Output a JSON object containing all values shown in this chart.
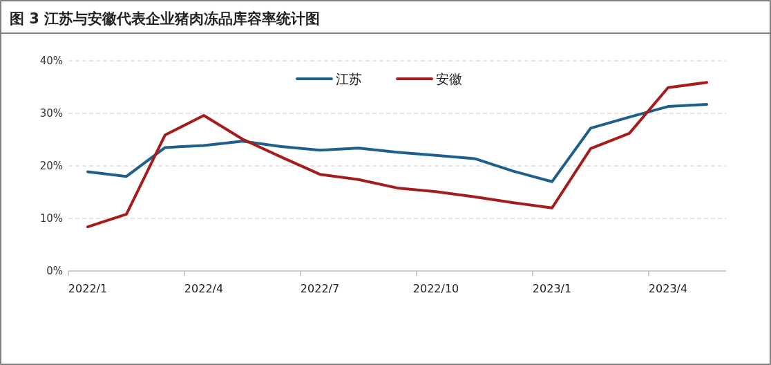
{
  "chart_data": {
    "type": "line",
    "title": "图 3 江苏与安徽代表企业猪肉冻品库容率统计图",
    "categories": [
      "2022/1",
      null,
      null,
      "2022/4",
      null,
      null,
      "2022/7",
      null,
      null,
      "2022/10",
      null,
      null,
      "2023/1",
      null,
      null,
      "2023/4",
      null
    ],
    "series": [
      {
        "name": "江苏",
        "color": "#1f5f8b",
        "values": [
          18.9,
          18.0,
          23.5,
          23.9,
          24.7,
          23.7,
          23.0,
          23.4,
          22.6,
          22.0,
          21.4,
          19.0,
          17.0,
          27.2,
          29.3,
          31.3,
          31.7
        ]
      },
      {
        "name": "安徽",
        "color": "#a51c1c",
        "values": [
          8.4,
          10.8,
          25.9,
          29.6,
          25.1,
          21.7,
          18.4,
          17.4,
          15.8,
          15.1,
          14.1,
          13.0,
          12.0,
          23.3,
          26.2,
          34.9,
          35.9
        ]
      }
    ],
    "ylim": [
      0,
      40
    ],
    "yticks": [
      {
        "value": 0,
        "label": "0%"
      },
      {
        "value": 10,
        "label": "10%"
      },
      {
        "value": 20,
        "label": "20%"
      },
      {
        "value": 30,
        "label": "30%"
      },
      {
        "value": 40,
        "label": "40%"
      }
    ],
    "grid": "y",
    "legend": "top",
    "marker": "none",
    "line_style": "solid"
  }
}
